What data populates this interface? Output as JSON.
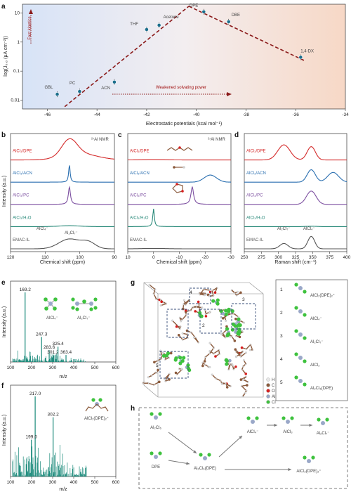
{
  "figure": {
    "panel_labels": {
      "a": "a",
      "b": "b",
      "c": "c",
      "d": "d",
      "e": "e",
      "f": "f",
      "g": "g",
      "h": "h"
    }
  },
  "panel_a": {
    "ylabel": "log(J₀,₀ (μA cm⁻²))",
    "xlabel": "Electrostatic potentials (kcal mol⁻¹)",
    "annotation_fast": "Fast kinetics",
    "annotation_weak": "Weakened solvating power",
    "colors": {
      "left_bg": "#dbe6f7",
      "right_bg": "#f6ddd0",
      "dash": "#8b1a1a",
      "point": "#1b6e8c"
    }
  },
  "panel_b": {
    "nmr_label": "²⁷Al NMR",
    "xlabel": "Chemical shift (ppm)",
    "ylabel": "Intensity (a.u.)",
    "peak_left": "AlCl₄⁻",
    "peak_right": "Al₂Cl₇⁻"
  },
  "panel_c": {
    "nmr_label": "²⁷Al NMR",
    "xlabel": "Chemical shift (ppm)"
  },
  "panel_d": {
    "xlabel": "Raman shift (cm⁻¹)",
    "peak_left": "Al₂Cl₇⁻",
    "peak_right": "AlCl₄⁻"
  },
  "panel_e": {
    "ylabel": "Intensity (a.u.)",
    "xlabel": "m/z",
    "species_1": "AlCl₄⁻",
    "species_2": "Al₂Cl₇⁻"
  },
  "panel_f": {
    "ylabel": "Intensity (a.u.)",
    "xlabel": "m/z",
    "species": "AlCl₂(DPE)₂⁺"
  },
  "panel_g": {
    "legend": [
      "H",
      "C",
      "O",
      "Al",
      "Cl"
    ],
    "legend_colors": [
      "#e8e8e8",
      "#8b5a3c",
      "#d62020",
      "#9aa8c8",
      "#3ec23e"
    ],
    "box_labels": [
      "1",
      "2",
      "3",
      "4",
      "5"
    ],
    "species": [
      {
        "num": "1",
        "name": "AlCl₂(DPE)₂⁺"
      },
      {
        "num": "2",
        "name": "AlCl₄⁻"
      },
      {
        "num": "3",
        "name": "Al₂Cl₇⁻"
      },
      {
        "num": "4",
        "name": "AlCl₃"
      },
      {
        "num": "5",
        "name": "Al₂Cl₆(DPE)"
      }
    ]
  },
  "panel_h": {
    "species": [
      "Al₂Cl₆",
      "DPE",
      "Al₂Cl₆(DPE)",
      "AlCl₄⁻",
      "AlCl₃",
      "Al₂Cl₇⁻",
      "AlCl₂(DPE)₂⁺"
    ]
  },
  "chart_data": [
    {
      "panel": "a",
      "type": "scatter",
      "xlabel": "Electrostatic potentials (kcal mol⁻¹)",
      "ylabel": "log(J₀,₀ (μA cm⁻²))",
      "xlim": [
        -47,
        -34
      ],
      "ylim": [
        0.005,
        20
      ],
      "yscale": "log",
      "x_ticks": [
        -46,
        -44,
        -42,
        -40,
        -38,
        -36,
        -34
      ],
      "y_ticks": [
        0.01,
        0.1,
        1,
        10
      ],
      "y_tick_labels": [
        "0.01",
        "0.1",
        "1",
        "10"
      ],
      "points": [
        {
          "label": "GBL",
          "x": -45.6,
          "y": 0.016
        },
        {
          "label": "PC",
          "x": -44.7,
          "y": 0.02
        },
        {
          "label": "ACN",
          "x": -43.3,
          "y": 0.042
        },
        {
          "label": "THF",
          "x": -42.0,
          "y": 2.7
        },
        {
          "label": "Acetone",
          "x": -41.5,
          "y": 3.8
        },
        {
          "label": "DPE",
          "x": -39.7,
          "y": 11
        },
        {
          "label": "DBE",
          "x": -38.7,
          "y": 5.0
        },
        {
          "label": "1,4-DX",
          "x": -35.8,
          "y": 0.3
        }
      ],
      "trend_left": [
        [
          -45.3,
          0.006
        ],
        [
          -40.3,
          17
        ]
      ],
      "trend_right": [
        [
          -40.3,
          17
        ],
        [
          -35.6,
          0.22
        ]
      ]
    },
    {
      "panel": "b",
      "type": "line",
      "xlabel": "Chemical shift (ppm)",
      "xlim": [
        120,
        90
      ],
      "x_ticks": [
        120,
        110,
        100,
        90
      ],
      "series": [
        {
          "name": "AlCl₃/DPE",
          "color": "#d42a2a"
        },
        {
          "name": "AlCl₃/ACN",
          "color": "#2a6fb0"
        },
        {
          "name": "AlCl₃/PC",
          "color": "#7c4fa0"
        },
        {
          "name": "AlCl₃/H₂O",
          "color": "#2a8a7a"
        },
        {
          "name": "EMAC-IL",
          "color": "#555555"
        }
      ]
    },
    {
      "panel": "c",
      "type": "line",
      "xlabel": "Chemical shift (ppm)",
      "xlim": [
        10,
        -30
      ],
      "x_ticks": [
        10,
        0,
        -10,
        -20,
        -30
      ],
      "series": [
        {
          "name": "AlCl₃/DPE",
          "color": "#d42a2a"
        },
        {
          "name": "AlCl₃/ACN",
          "color": "#2a6fb0"
        },
        {
          "name": "AlCl₃/PC",
          "color": "#7c4fa0"
        },
        {
          "name": "AlCl₃/H₂O",
          "color": "#2a8a7a"
        },
        {
          "name": "EMAC-IL",
          "color": "#555555"
        }
      ]
    },
    {
      "panel": "d",
      "type": "line",
      "xlabel": "Raman shift (cm⁻¹)",
      "xlim": [
        250,
        400
      ],
      "x_ticks": [
        250,
        275,
        300,
        325,
        350,
        375,
        400
      ],
      "series": [
        {
          "name": "AlCl₃/DPE",
          "color": "#d42a2a"
        },
        {
          "name": "AlCl₃/ACN",
          "color": "#2a6fb0"
        },
        {
          "name": "AlCl₃/PC",
          "color": "#7c4fa0"
        },
        {
          "name": "AlCl₃/H₂O",
          "color": "#2a8a7a"
        },
        {
          "name": "EMAC-IL",
          "color": "#555555"
        }
      ]
    },
    {
      "panel": "e",
      "type": "bar",
      "xlabel": "m/z",
      "xlim": [
        100,
        600
      ],
      "x_ticks": [
        100,
        200,
        300,
        400,
        500,
        600
      ],
      "labeled_peaks": [
        {
          "x": 169.2,
          "y": 1.0,
          "label": "169.2"
        },
        {
          "x": 247.3,
          "y": 0.36,
          "label": "247.3"
        },
        {
          "x": 283.6,
          "y": 0.17,
          "label": "283.6"
        },
        {
          "x": 301.2,
          "y": 0.1,
          "label": "301.2"
        },
        {
          "x": 325.4,
          "y": 0.22,
          "label": "325.4"
        },
        {
          "x": 363.4,
          "y": 0.1,
          "label": "363.4"
        }
      ]
    },
    {
      "panel": "f",
      "type": "bar",
      "xlabel": "m/z",
      "xlim": [
        100,
        600
      ],
      "x_ticks": [
        100,
        200,
        300,
        400,
        500,
        600
      ],
      "labeled_peaks": [
        {
          "x": 217.0,
          "y": 1.0,
          "label": "217.0"
        },
        {
          "x": 199.0,
          "y": 0.46,
          "label": "199.0"
        },
        {
          "x": 302.2,
          "y": 0.74,
          "label": "302.2"
        }
      ]
    }
  ]
}
